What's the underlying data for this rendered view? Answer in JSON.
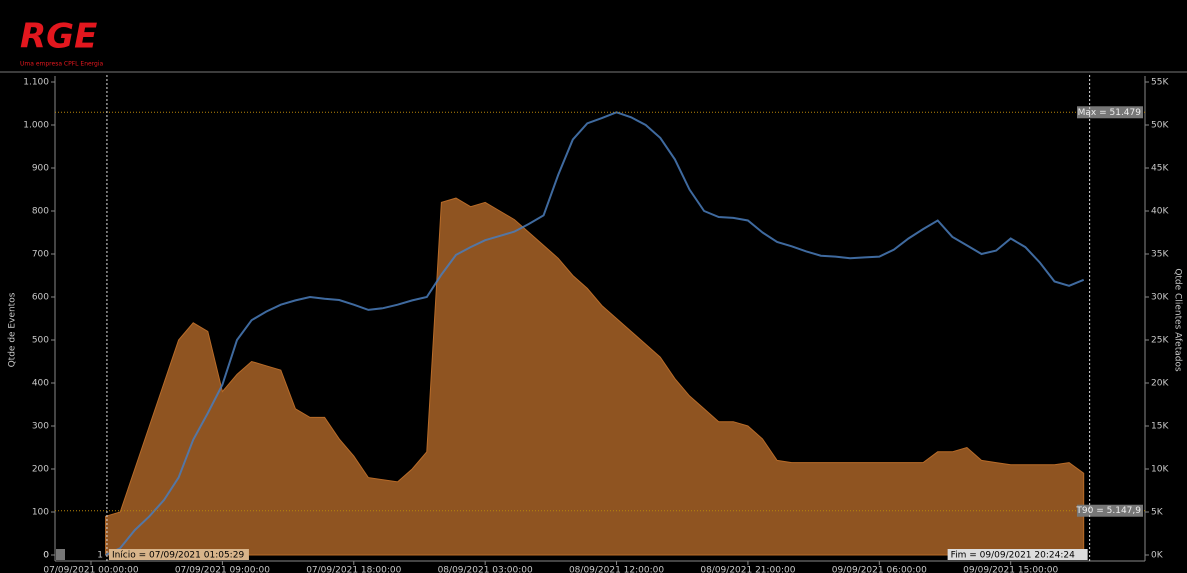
{
  "header": {
    "logo": "RGE",
    "tagline": "Uma empresa CPFL Energia"
  },
  "chart_data": {
    "type": "area-line",
    "y_label": "Qtde de Eventos",
    "y2_label": "Qtde Clientes Afetados",
    "x": [
      "07/09/2021 01:00:00",
      "07/09/2021 02:00:00",
      "07/09/2021 03:00:00",
      "07/09/2021 04:00:00",
      "07/09/2021 05:00:00",
      "07/09/2021 06:00:00",
      "07/09/2021 07:00:00",
      "07/09/2021 08:00:00",
      "07/09/2021 09:00:00",
      "07/09/2021 10:00:00",
      "07/09/2021 11:00:00",
      "07/09/2021 12:00:00",
      "07/09/2021 13:00:00",
      "07/09/2021 14:00:00",
      "07/09/2021 15:00:00",
      "07/09/2021 16:00:00",
      "07/09/2021 17:00:00",
      "07/09/2021 18:00:00",
      "07/09/2021 19:00:00",
      "07/09/2021 20:00:00",
      "07/09/2021 21:00:00",
      "07/09/2021 22:00:00",
      "07/09/2021 23:00:00",
      "08/09/2021 00:00:00",
      "08/09/2021 01:00:00",
      "08/09/2021 02:00:00",
      "08/09/2021 03:00:00",
      "08/09/2021 04:00:00",
      "08/09/2021 05:00:00",
      "08/09/2021 06:00:00",
      "08/09/2021 07:00:00",
      "08/09/2021 08:00:00",
      "08/09/2021 09:00:00",
      "08/09/2021 10:00:00",
      "08/09/2021 11:00:00",
      "08/09/2021 12:00:00",
      "08/09/2021 13:00:00",
      "08/09/2021 14:00:00",
      "08/09/2021 15:00:00",
      "08/09/2021 16:00:00",
      "08/09/2021 17:00:00",
      "08/09/2021 18:00:00",
      "08/09/2021 19:00:00",
      "08/09/2021 20:00:00",
      "08/09/2021 21:00:00",
      "08/09/2021 22:00:00",
      "08/09/2021 23:00:00",
      "09/09/2021 00:00:00",
      "09/09/2021 01:00:00",
      "09/09/2021 02:00:00",
      "09/09/2021 03:00:00",
      "09/09/2021 04:00:00",
      "09/09/2021 05:00:00",
      "09/09/2021 06:00:00",
      "09/09/2021 07:00:00",
      "09/09/2021 08:00:00",
      "09/09/2021 09:00:00",
      "09/09/2021 10:00:00",
      "09/09/2021 11:00:00",
      "09/09/2021 12:00:00",
      "09/09/2021 13:00:00",
      "09/09/2021 14:00:00",
      "09/09/2021 15:00:00",
      "09/09/2021 16:00:00",
      "09/09/2021 17:00:00",
      "09/09/2021 18:00:00",
      "09/09/2021 19:00:00",
      "09/09/2021 20:00:00"
    ],
    "series": [
      {
        "name": "Qtde de Eventos",
        "color": "#8f5421",
        "axis": "y",
        "values": [
          90,
          100,
          200,
          300,
          400,
          500,
          540,
          520,
          380,
          420,
          450,
          440,
          430,
          340,
          320,
          320,
          270,
          230,
          180,
          175,
          170,
          200,
          240,
          820,
          830,
          810,
          820,
          800,
          780,
          750,
          720,
          690,
          650,
          620,
          580,
          550,
          520,
          490,
          460,
          410,
          370,
          340,
          310,
          310,
          300,
          270,
          220,
          215,
          215,
          215,
          215,
          215,
          215,
          215,
          215,
          215,
          215,
          240,
          240,
          250,
          220,
          215,
          210,
          210,
          210,
          210,
          215,
          190
        ]
      },
      {
        "name": "Qtde Clientes Afetados",
        "color": "#4a7dbb",
        "axis": "y2",
        "values": [
          0,
          800,
          2900,
          4500,
          6400,
          9000,
          13400,
          16500,
          19800,
          25000,
          27300,
          28300,
          29100,
          29600,
          30000,
          29800,
          29650,
          29100,
          28500,
          28700,
          29100,
          29600,
          30000,
          32600,
          34900,
          35800,
          36600,
          37100,
          37600,
          38500,
          39500,
          44200,
          48300,
          50200,
          50800,
          51479,
          50900,
          50000,
          48500,
          46000,
          42500,
          40000,
          39300,
          39200,
          38900,
          37500,
          36400,
          35900,
          35300,
          34800,
          34700,
          34500,
          34600,
          34700,
          35500,
          36800,
          37900,
          38900,
          37000,
          36000,
          35000,
          35400,
          36800,
          35800,
          34000,
          31800,
          31300,
          32000
        ]
      }
    ],
    "xlim": [
      "06/09/2021 21:32:00",
      "10/09/2021 00:12:00"
    ],
    "xticks": [
      "07/09/2021 00:00:00",
      "07/09/2021 09:00:00",
      "07/09/2021 18:00:00",
      "08/09/2021 03:00:00",
      "08/09/2021 12:00:00",
      "08/09/2021 21:00:00",
      "09/09/2021 06:00:00",
      "09/09/2021 15:00:00"
    ],
    "ylim": [
      0,
      1100
    ],
    "yticks": [
      0,
      100,
      200,
      300,
      400,
      500,
      600,
      700,
      800,
      900,
      {
        "value": 1000,
        "label": "1.000"
      },
      {
        "value": 1100,
        "label": "1.100"
      }
    ],
    "y2lim": [
      0,
      55000
    ],
    "y2ticks": [
      {
        "value": 0,
        "label": "0K"
      },
      {
        "value": 5000,
        "label": "5K"
      },
      {
        "value": 10000,
        "label": "10K"
      },
      {
        "value": 15000,
        "label": "15K"
      },
      {
        "value": 20000,
        "label": "20K"
      },
      {
        "value": 25000,
        "label": "25K"
      },
      {
        "value": 30000,
        "label": "30K"
      },
      {
        "value": 35000,
        "label": "35K"
      },
      {
        "value": 40000,
        "label": "40K"
      },
      {
        "value": 45000,
        "label": "45K"
      },
      {
        "value": 50000,
        "label": "50K"
      },
      {
        "value": 55000,
        "label": "55K"
      }
    ],
    "hlines": [
      {
        "label": "Max = 51.479",
        "value": 51479,
        "axis": "y2"
      },
      {
        "label": "T90 = 5.147,9",
        "value": 5147.9,
        "axis": "y2"
      }
    ],
    "vlines": [
      {
        "label": "Início = 07/09/2021 01:05:29"
      },
      {
        "label": "Fim = 09/09/2021 20:24:24"
      }
    ],
    "cursor_labels": [
      "0",
      "1"
    ]
  }
}
